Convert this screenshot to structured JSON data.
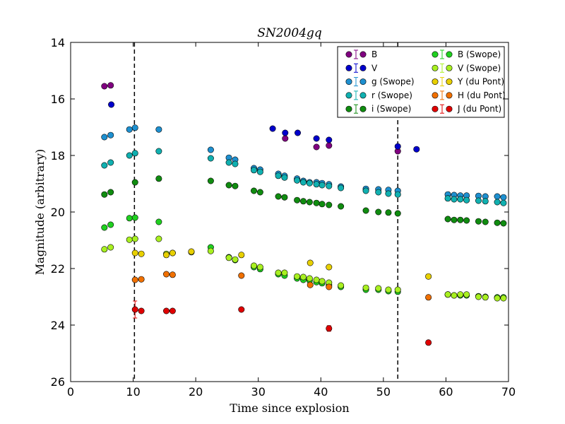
{
  "chart_data": {
    "type": "scatter",
    "title": "SN2004gq",
    "xlabel": "Time since explosion",
    "ylabel": "Magnitude (arbitrary)",
    "xlim": [
      0,
      70
    ],
    "ylim": [
      26,
      14
    ],
    "y_inverted": true,
    "xticks": [
      "0",
      "10",
      "20",
      "30",
      "40",
      "50",
      "60",
      "70"
    ],
    "yticks": [
      "14",
      "16",
      "18",
      "20",
      "22",
      "24",
      "26"
    ],
    "vlines": [
      10.2,
      52.3
    ],
    "legend_position": "top-right",
    "series": [
      {
        "name": "B",
        "color": "#800080",
        "points": [
          [
            5.4,
            15.55
          ],
          [
            6.4,
            15.52
          ],
          [
            34.3,
            17.4
          ],
          [
            39.3,
            17.7
          ],
          [
            41.3,
            17.65
          ],
          [
            52.3,
            17.85
          ]
        ]
      },
      {
        "name": "V",
        "color": "#0000cc",
        "points": [
          [
            6.5,
            16.2
          ],
          [
            32.3,
            17.05
          ],
          [
            34.3,
            17.2
          ],
          [
            36.3,
            17.2
          ],
          [
            39.3,
            17.4
          ],
          [
            41.3,
            17.45
          ],
          [
            52.3,
            17.68
          ],
          [
            55.3,
            17.78
          ]
        ]
      },
      {
        "name": "g (Swope)",
        "color": "#1e90d0",
        "points": [
          [
            5.4,
            17.35
          ],
          [
            6.4,
            17.28
          ],
          [
            9.4,
            17.08
          ],
          [
            10.3,
            17.02
          ],
          [
            14.1,
            17.08
          ],
          [
            22.4,
            17.8
          ],
          [
            25.3,
            18.08
          ],
          [
            26.3,
            18.15
          ],
          [
            29.3,
            18.45
          ],
          [
            30.3,
            18.5
          ],
          [
            33.2,
            18.65
          ],
          [
            34.2,
            18.72
          ],
          [
            36.2,
            18.82
          ],
          [
            37.2,
            18.9
          ],
          [
            38.2,
            18.95
          ],
          [
            39.3,
            18.95
          ],
          [
            40.2,
            18.98
          ],
          [
            41.3,
            19.02
          ],
          [
            43.2,
            19.1
          ],
          [
            47.2,
            19.18
          ],
          [
            49.2,
            19.2
          ],
          [
            50.8,
            19.22
          ],
          [
            52.3,
            19.25
          ],
          [
            60.3,
            19.38
          ],
          [
            61.3,
            19.4
          ],
          [
            62.3,
            19.42
          ],
          [
            63.3,
            19.42
          ],
          [
            65.2,
            19.43
          ],
          [
            66.3,
            19.45
          ],
          [
            68.2,
            19.45
          ],
          [
            69.2,
            19.48
          ]
        ]
      },
      {
        "name": "r (Swope)",
        "color": "#10b0b0",
        "points": [
          [
            5.4,
            18.35
          ],
          [
            6.4,
            18.25
          ],
          [
            9.4,
            18.0
          ],
          [
            10.3,
            17.92
          ],
          [
            14.1,
            17.85
          ],
          [
            22.4,
            18.1
          ],
          [
            25.3,
            18.25
          ],
          [
            26.3,
            18.3
          ],
          [
            29.3,
            18.52
          ],
          [
            30.3,
            18.58
          ],
          [
            33.2,
            18.72
          ],
          [
            34.2,
            18.78
          ],
          [
            36.2,
            18.88
          ],
          [
            37.2,
            18.95
          ],
          [
            38.2,
            18.98
          ],
          [
            39.3,
            19.02
          ],
          [
            40.2,
            19.05
          ],
          [
            41.3,
            19.08
          ],
          [
            43.2,
            19.15
          ],
          [
            47.2,
            19.25
          ],
          [
            49.2,
            19.3
          ],
          [
            50.8,
            19.35
          ],
          [
            52.3,
            19.38
          ],
          [
            60.3,
            19.52
          ],
          [
            61.3,
            19.55
          ],
          [
            62.3,
            19.55
          ],
          [
            63.3,
            19.58
          ],
          [
            65.2,
            19.6
          ],
          [
            66.3,
            19.62
          ],
          [
            68.2,
            19.65
          ],
          [
            69.2,
            19.68
          ]
        ]
      },
      {
        "name": "i (Swope)",
        "color": "#108c10",
        "points": [
          [
            5.4,
            19.38
          ],
          [
            6.4,
            19.3
          ],
          [
            10.3,
            18.95
          ],
          [
            14.1,
            18.82
          ],
          [
            22.4,
            18.9
          ],
          [
            25.3,
            19.05
          ],
          [
            26.3,
            19.08
          ],
          [
            29.3,
            19.25
          ],
          [
            30.3,
            19.3
          ],
          [
            33.2,
            19.45
          ],
          [
            34.2,
            19.48
          ],
          [
            36.2,
            19.58
          ],
          [
            37.2,
            19.62
          ],
          [
            38.2,
            19.65
          ],
          [
            39.3,
            19.68
          ],
          [
            40.2,
            19.72
          ],
          [
            41.3,
            19.75
          ],
          [
            43.2,
            19.8
          ],
          [
            47.2,
            19.95
          ],
          [
            49.2,
            20.0
          ],
          [
            50.8,
            20.02
          ],
          [
            52.3,
            20.05
          ],
          [
            60.3,
            20.25
          ],
          [
            61.3,
            20.28
          ],
          [
            62.3,
            20.28
          ],
          [
            63.3,
            20.3
          ],
          [
            65.2,
            20.33
          ],
          [
            66.3,
            20.35
          ],
          [
            68.2,
            20.38
          ],
          [
            69.2,
            20.4
          ]
        ]
      },
      {
        "name": "B (Swope)",
        "color": "#20d020",
        "points": [
          [
            5.4,
            20.55
          ],
          [
            6.4,
            20.45
          ],
          [
            9.4,
            20.22
          ],
          [
            10.3,
            20.2
          ],
          [
            14.1,
            20.35
          ],
          [
            22.4,
            21.25
          ],
          [
            25.3,
            21.6
          ],
          [
            26.3,
            21.7
          ],
          [
            29.3,
            21.95
          ],
          [
            30.3,
            22.02
          ],
          [
            33.2,
            22.2
          ],
          [
            34.2,
            22.25
          ],
          [
            36.2,
            22.35
          ],
          [
            37.2,
            22.4
          ],
          [
            38.2,
            22.42
          ],
          [
            39.3,
            22.48
          ],
          [
            40.2,
            22.52
          ],
          [
            41.3,
            22.58
          ],
          [
            43.2,
            22.65
          ],
          [
            47.2,
            22.75
          ],
          [
            49.2,
            22.75
          ],
          [
            50.8,
            22.8
          ],
          [
            52.3,
            22.82
          ],
          [
            60.3,
            22.92
          ],
          [
            61.3,
            22.95
          ],
          [
            62.3,
            22.95
          ],
          [
            63.3,
            22.95
          ],
          [
            65.2,
            22.98
          ],
          [
            66.3,
            23.0
          ],
          [
            68.2,
            23.02
          ],
          [
            69.2,
            23.02
          ]
        ]
      },
      {
        "name": "V (Swope)",
        "color": "#a8f020",
        "points": [
          [
            5.4,
            21.32
          ],
          [
            6.4,
            21.25
          ],
          [
            9.4,
            20.98
          ],
          [
            10.3,
            20.95
          ],
          [
            14.1,
            20.95
          ],
          [
            15.3,
            21.48
          ],
          [
            16.3,
            21.45
          ],
          [
            19.3,
            21.42
          ],
          [
            22.4,
            21.38
          ],
          [
            25.3,
            21.62
          ],
          [
            26.3,
            21.68
          ],
          [
            29.3,
            21.9
          ],
          [
            30.3,
            21.95
          ],
          [
            33.2,
            22.15
          ],
          [
            34.2,
            22.15
          ],
          [
            36.2,
            22.28
          ],
          [
            37.2,
            22.3
          ],
          [
            38.2,
            22.35
          ],
          [
            39.3,
            22.4
          ],
          [
            40.2,
            22.45
          ],
          [
            41.3,
            22.5
          ],
          [
            43.2,
            22.6
          ],
          [
            47.2,
            22.68
          ],
          [
            49.2,
            22.7
          ],
          [
            50.8,
            22.75
          ],
          [
            52.3,
            22.75
          ],
          [
            60.3,
            22.92
          ],
          [
            61.3,
            22.95
          ],
          [
            62.3,
            22.92
          ],
          [
            63.3,
            22.92
          ],
          [
            65.2,
            23.0
          ],
          [
            66.3,
            23.02
          ],
          [
            68.2,
            23.05
          ],
          [
            69.2,
            23.05
          ]
        ]
      },
      {
        "name": "Y (du Pont)",
        "color": "#e8d000",
        "points": [
          [
            10.3,
            21.45
          ],
          [
            11.3,
            21.48
          ],
          [
            15.3,
            21.52
          ],
          [
            16.3,
            21.45
          ],
          [
            19.3,
            21.4
          ],
          [
            27.3,
            21.52
          ],
          [
            38.3,
            21.8
          ],
          [
            41.3,
            21.95
          ],
          [
            57.2,
            22.28
          ]
        ]
      },
      {
        "name": "H (du Pont)",
        "color": "#f07000",
        "points": [
          [
            10.3,
            22.4
          ],
          [
            11.3,
            22.38
          ],
          [
            15.3,
            22.2
          ],
          [
            16.3,
            22.22
          ],
          [
            27.3,
            22.25
          ],
          [
            38.3,
            22.58
          ],
          [
            41.3,
            22.65
          ],
          [
            57.2,
            23.02
          ]
        ]
      },
      {
        "name": "J (du Pont)",
        "color": "#e00000",
        "points": [
          [
            10.3,
            23.45
          ],
          [
            11.3,
            23.5
          ],
          [
            15.3,
            23.5
          ],
          [
            16.3,
            23.5
          ],
          [
            27.3,
            23.45
          ],
          [
            41.3,
            24.12
          ],
          [
            57.2,
            24.62
          ]
        ],
        "errors": [
          0.3,
          0,
          0,
          0,
          0,
          0.1,
          0
        ]
      }
    ]
  }
}
